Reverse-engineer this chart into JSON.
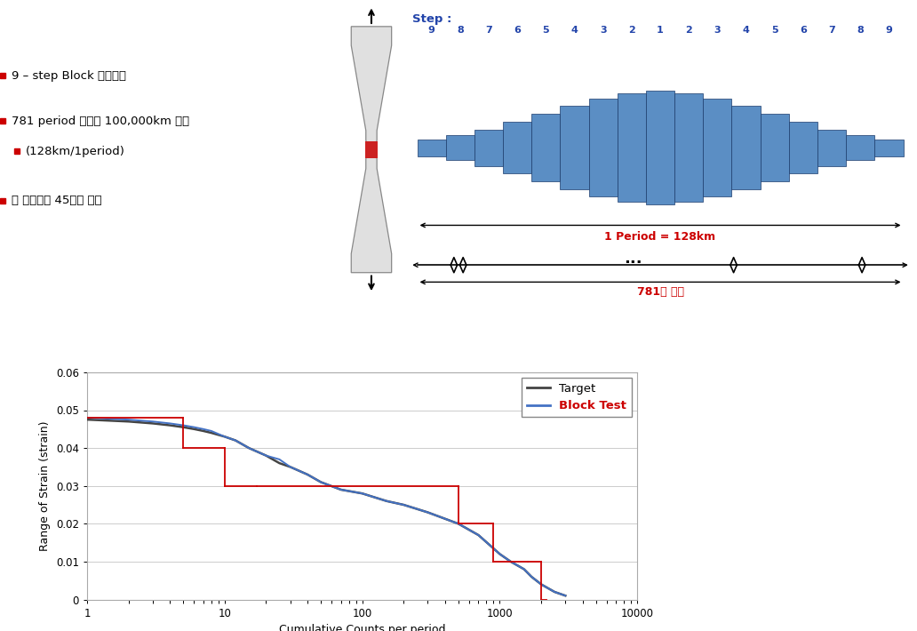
{
  "block_color": "#5b8ec4",
  "block_edge_color": "#1a3a6a",
  "block_heights": [
    0.15,
    0.22,
    0.32,
    0.45,
    0.6,
    0.74,
    0.86,
    0.95,
    1.0,
    0.95,
    0.86,
    0.74,
    0.6,
    0.45,
    0.32,
    0.22,
    0.15
  ],
  "step_label": "Step :",
  "step_labels": [
    "9",
    "8",
    "7",
    "6",
    "5",
    "4",
    "3",
    "2",
    "1",
    "2",
    "3",
    "4",
    "5",
    "6",
    "7",
    "8",
    "9"
  ],
  "period_label": "1 Period = 128km",
  "repeat_label": "781의 반복",
  "bullet_color": "#cc0000",
  "text_color_blue": "#2244aa",
  "text_color_red": "#cc0000",
  "target_line_color": "#444444",
  "block_test_line_color": "#cc0000",
  "blue_smooth_color": "#4472c4",
  "xlabel": "Cumulative Counts per period",
  "ylabel": "Range of Strain (strain)",
  "yticks": [
    0,
    0.01,
    0.02,
    0.03,
    0.04,
    0.05,
    0.06
  ],
  "xticks": [
    1,
    10,
    100,
    1000,
    10000
  ],
  "xlim_log": [
    1,
    10000
  ],
  "ylim": [
    0,
    0.06
  ],
  "legend_target": "Target",
  "legend_block": "Block Test",
  "target_x": [
    1,
    2,
    3,
    4,
    5,
    6,
    7,
    8,
    10,
    12,
    15,
    20,
    25,
    30,
    40,
    50,
    70,
    100,
    150,
    200,
    300,
    500,
    700,
    1000,
    1200,
    1500,
    1700,
    2000,
    2500,
    3000
  ],
  "target_y": [
    0.0475,
    0.047,
    0.0465,
    0.046,
    0.0455,
    0.045,
    0.0445,
    0.044,
    0.043,
    0.042,
    0.04,
    0.038,
    0.036,
    0.035,
    0.033,
    0.031,
    0.029,
    0.028,
    0.026,
    0.025,
    0.023,
    0.02,
    0.017,
    0.012,
    0.01,
    0.008,
    0.006,
    0.004,
    0.002,
    0.001
  ],
  "blue_x": [
    1,
    2,
    3,
    4,
    5,
    6,
    7,
    8,
    10,
    12,
    15,
    20,
    25,
    30,
    40,
    50,
    70,
    100,
    150,
    200,
    300,
    500,
    700,
    1000,
    1200,
    1500,
    1700,
    2000,
    2500,
    3000
  ],
  "blue_y": [
    0.048,
    0.0475,
    0.047,
    0.0465,
    0.046,
    0.0455,
    0.045,
    0.0445,
    0.043,
    0.042,
    0.04,
    0.038,
    0.037,
    0.035,
    0.033,
    0.031,
    0.029,
    0.028,
    0.026,
    0.025,
    0.023,
    0.02,
    0.017,
    0.012,
    0.01,
    0.008,
    0.006,
    0.004,
    0.002,
    0.001
  ],
  "block_step_x": [
    1,
    5,
    5,
    10,
    10,
    17,
    17,
    500,
    500,
    900,
    900,
    1600,
    1600,
    2000,
    2000,
    2200
  ],
  "block_step_y": [
    0.048,
    0.048,
    0.04,
    0.04,
    0.03,
    0.03,
    0.03,
    0.03,
    0.02,
    0.02,
    0.01,
    0.01,
    0.01,
    0.01,
    0.0,
    0.0
  ]
}
